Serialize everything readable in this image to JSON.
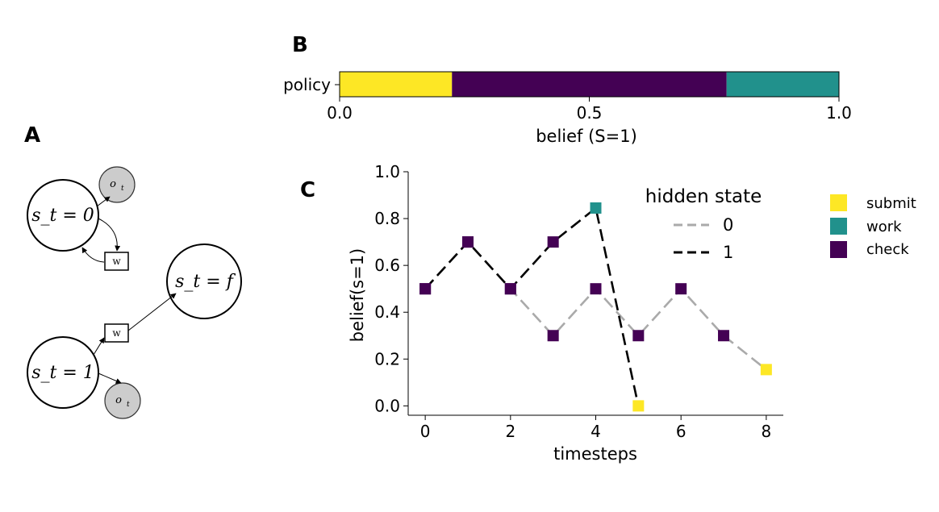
{
  "panels": {
    "a": "A",
    "b": "B",
    "c": "C"
  },
  "colors": {
    "submit": "#fde725",
    "work": "#21918c",
    "check": "#440154",
    "hidden0": "#aaaaaa",
    "hidden1": "#000000"
  },
  "diagram": {
    "nodes": [
      {
        "label": "s_t = 0"
      },
      {
        "label": "s_t = 1"
      },
      {
        "label": "s_t = f"
      }
    ],
    "obs_label": "o",
    "obs_sub": "t",
    "action_label": "w"
  },
  "chart_data": [
    {
      "type": "bar",
      "orientation": "horizontal-stacked",
      "categories": [
        "policy"
      ],
      "segments": [
        {
          "action": "submit",
          "from": 0.0,
          "to": 0.225
        },
        {
          "action": "check",
          "from": 0.225,
          "to": 0.775
        },
        {
          "action": "work",
          "from": 0.775,
          "to": 1.0
        }
      ],
      "xlabel": "belief (S=1)",
      "xlim": [
        0,
        1
      ],
      "xticks": [
        "0.0",
        "0.5",
        "1.0"
      ]
    },
    {
      "type": "line",
      "xlabel": "timesteps",
      "ylabel": "belief(s=1)",
      "xlim": [
        -0.4,
        8.4
      ],
      "ylim": [
        -0.04,
        1.0
      ],
      "xticks": [
        "0",
        "2",
        "4",
        "6",
        "8"
      ],
      "yticks": [
        "0.0",
        "0.2",
        "0.4",
        "0.6",
        "0.8",
        "1.0"
      ],
      "legend_title": "hidden state",
      "legend_position": "top-right",
      "series": [
        {
          "name": "0",
          "style": "dashed-gray",
          "points": [
            {
              "x": 0,
              "y": 0.5,
              "action": "check"
            },
            {
              "x": 1,
              "y": 0.7,
              "action": "check"
            },
            {
              "x": 2,
              "y": 0.5,
              "action": "check"
            },
            {
              "x": 3,
              "y": 0.3,
              "action": "check"
            },
            {
              "x": 4,
              "y": 0.5,
              "action": "check"
            },
            {
              "x": 5,
              "y": 0.3,
              "action": "check"
            },
            {
              "x": 6,
              "y": 0.5,
              "action": "check"
            },
            {
              "x": 7,
              "y": 0.3,
              "action": "check"
            },
            {
              "x": 8,
              "y": 0.155,
              "action": "submit"
            }
          ]
        },
        {
          "name": "1",
          "style": "dashed-black",
          "points": [
            {
              "x": 0,
              "y": 0.5,
              "action": "check"
            },
            {
              "x": 1,
              "y": 0.7,
              "action": "check"
            },
            {
              "x": 2,
              "y": 0.5,
              "action": "check"
            },
            {
              "x": 3,
              "y": 0.7,
              "action": "check"
            },
            {
              "x": 4,
              "y": 0.845,
              "action": "work"
            },
            {
              "x": 5,
              "y": 0.0,
              "action": "submit"
            }
          ]
        }
      ]
    }
  ],
  "action_legend": [
    {
      "key": "submit",
      "label": "submit"
    },
    {
      "key": "work",
      "label": "work"
    },
    {
      "key": "check",
      "label": "check"
    }
  ]
}
